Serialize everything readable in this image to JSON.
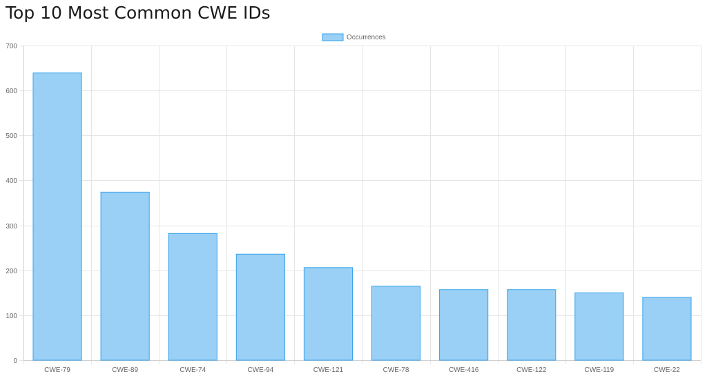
{
  "page": {
    "title": "Top 10 Most Common CWE IDs"
  },
  "chart_data": {
    "type": "bar",
    "title": "Top 10 Most Common CWE IDs",
    "xlabel": "",
    "ylabel": "",
    "categories": [
      "CWE-79",
      "CWE-89",
      "CWE-74",
      "CWE-94",
      "CWE-121",
      "CWE-78",
      "CWE-416",
      "CWE-122",
      "CWE-119",
      "CWE-22"
    ],
    "series": [
      {
        "name": "Occurrences",
        "values": [
          639,
          374,
          282,
          236,
          206,
          165,
          157,
          157,
          150,
          140
        ]
      }
    ],
    "ylim": [
      0,
      700
    ],
    "yticks": [
      0,
      100,
      200,
      300,
      400,
      500,
      600,
      700
    ],
    "grid": true,
    "legend_position": "top-center",
    "colors": {
      "bar_fill": "#9ad0f5",
      "bar_stroke": "#36a2eb",
      "grid": "#e5e5e5",
      "tick_text": "#666666"
    }
  }
}
